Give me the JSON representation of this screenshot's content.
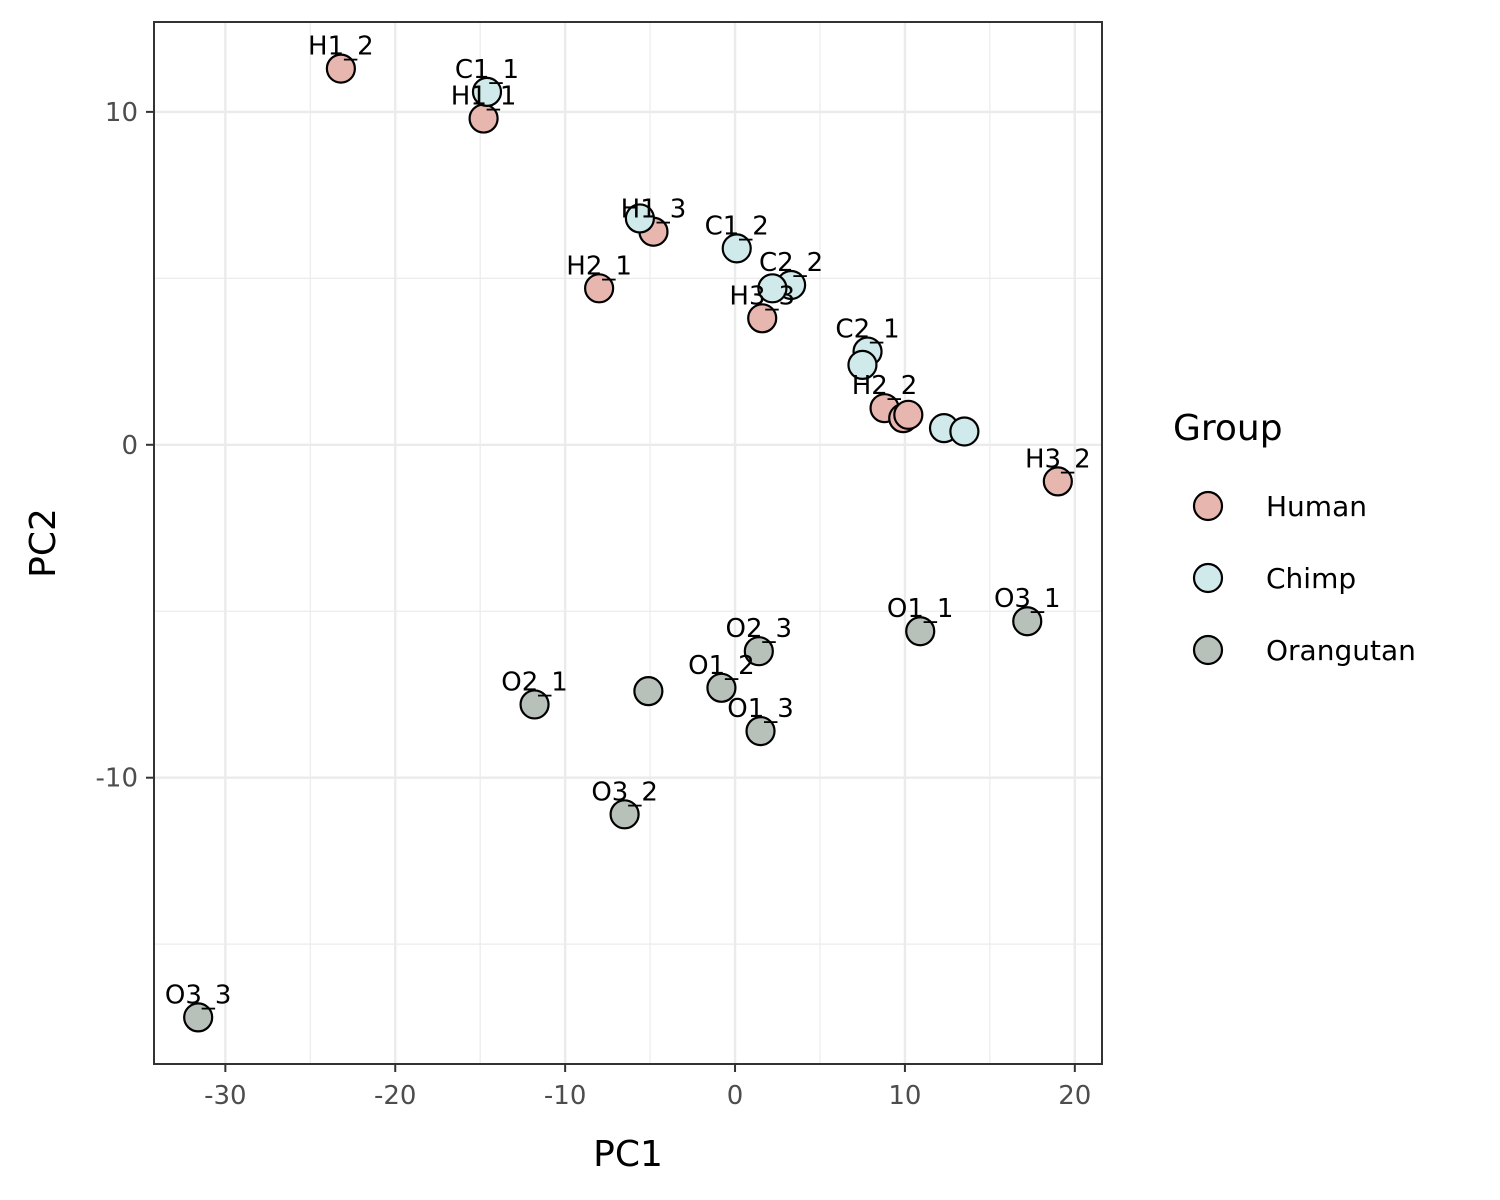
{
  "chart_data": {
    "type": "scatter",
    "xlabel": "PC1",
    "ylabel": "PC2",
    "xlim": [
      -34.2,
      21.6
    ],
    "ylim": [
      -18.6,
      12.7
    ],
    "x_ticks": [
      -30,
      -20,
      -10,
      0,
      10,
      20
    ],
    "y_ticks": [
      -10,
      0,
      10
    ],
    "x_minor_ticks": [
      -25,
      -15,
      -5,
      5,
      15
    ],
    "y_minor_ticks": [
      -15,
      -5,
      5
    ],
    "grid": true,
    "legend_placement": "right",
    "legend_title": "Group",
    "series": [
      {
        "name": "Human",
        "color": "#e7b7af",
        "points": [
          {
            "label": "H1_2",
            "x": -23.2,
            "y": 11.3
          },
          {
            "label": "H1_1",
            "x": -14.8,
            "y": 9.8
          },
          {
            "label": "H1_3",
            "x": -4.8,
            "y": 6.4
          },
          {
            "label": "H2_1",
            "x": -8.0,
            "y": 4.7
          },
          {
            "label": "H3_3",
            "x": 1.6,
            "y": 3.8
          },
          {
            "label": "H2_2",
            "x": 8.8,
            "y": 1.1
          },
          {
            "label": "",
            "x": 9.9,
            "y": 0.8
          },
          {
            "label": "",
            "x": 10.2,
            "y": 0.9
          },
          {
            "label": "H3_2",
            "x": 19.0,
            "y": -1.1
          }
        ]
      },
      {
        "name": "Chimp",
        "color": "#d0eaeb",
        "points": [
          {
            "label": "C1_1",
            "x": -14.6,
            "y": 10.6
          },
          {
            "label": "",
            "x": -5.6,
            "y": 6.8
          },
          {
            "label": "C1_2",
            "x": 0.1,
            "y": 5.9
          },
          {
            "label": "C2_2",
            "x": 3.3,
            "y": 4.8
          },
          {
            "label": "",
            "x": 2.2,
            "y": 4.7
          },
          {
            "label": "C2_1",
            "x": 7.8,
            "y": 2.8
          },
          {
            "label": "",
            "x": 7.5,
            "y": 2.4
          },
          {
            "label": "",
            "x": 12.3,
            "y": 0.5
          },
          {
            "label": "",
            "x": 13.5,
            "y": 0.4
          }
        ]
      },
      {
        "name": "Orangutan",
        "color": "#b7c1ba",
        "points": [
          {
            "label": "O1_1",
            "x": 10.9,
            "y": -5.6
          },
          {
            "label": "O3_1",
            "x": 17.2,
            "y": -5.3
          },
          {
            "label": "O2_3",
            "x": 1.4,
            "y": -6.2
          },
          {
            "label": "O1_2",
            "x": -0.8,
            "y": -7.3
          },
          {
            "label": "",
            "x": -5.1,
            "y": -7.4
          },
          {
            "label": "O2_1",
            "x": -11.8,
            "y": -7.8
          },
          {
            "label": "O1_3",
            "x": 1.5,
            "y": -8.6
          },
          {
            "label": "O3_2",
            "x": -6.5,
            "y": -11.1
          },
          {
            "label": "O3_3",
            "x": -31.6,
            "y": -17.2
          }
        ]
      }
    ]
  }
}
